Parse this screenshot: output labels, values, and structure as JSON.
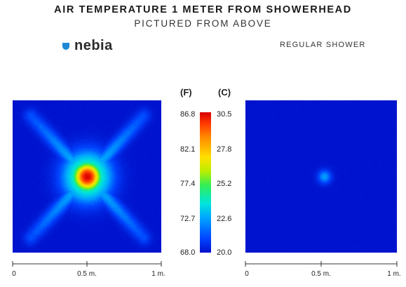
{
  "header": {
    "title": "AIR TEMPERATURE 1 METER FROM SHOWERHEAD",
    "subtitle": "PICTURED FROM ABOVE"
  },
  "brand": {
    "logo_text": "nebia",
    "logo_icon": "droplet-icon",
    "accent_color": "#1e88d6"
  },
  "panels": {
    "right_label": "REGULAR SHOWER"
  },
  "colorbar": {
    "unit_f": "(F)",
    "unit_c": "(C)",
    "f_ticks": [
      "86.8",
      "82.1",
      "77.4",
      "72.7",
      "68.0"
    ],
    "c_ticks": [
      "30.5",
      "27.8",
      "25.2",
      "22.6",
      "20.0"
    ]
  },
  "axes": {
    "left_ticks": [
      "0",
      "0.5 m.",
      "1 m."
    ],
    "right_ticks": [
      "0",
      "0.5 m.",
      "1 m."
    ]
  },
  "chart_data": [
    {
      "type": "heatmap",
      "panel": "nebia",
      "xlim": [
        0,
        1
      ],
      "ylim": [
        0,
        1
      ],
      "value_range_f": [
        68.0,
        86.8
      ],
      "value_range_c": [
        20.0,
        30.5
      ],
      "colorscale": [
        "#0011cc",
        "#0044ff",
        "#00a6ff",
        "#00e5dc",
        "#33ee55",
        "#bbee00",
        "#ffe000",
        "#ff8c00",
        "#ff3a00",
        "#d80000"
      ],
      "background_c": 20.0,
      "hotspots": [
        {
          "x": 0.5,
          "y": 0.5,
          "radius": 0.12,
          "peak_c": 30.5
        },
        {
          "x": 0.5,
          "y": 0.5,
          "radius": 0.2,
          "peak_c": 25.5
        }
      ],
      "streaks": [
        {
          "from": [
            0.12,
            0.1
          ],
          "to": [
            0.88,
            0.9
          ],
          "peak_c": 22.8
        },
        {
          "from": [
            0.12,
            0.9
          ],
          "to": [
            0.88,
            0.1
          ],
          "peak_c": 22.8
        }
      ]
    },
    {
      "type": "heatmap",
      "panel": "regular shower",
      "xlim": [
        0,
        1
      ],
      "ylim": [
        0,
        1
      ],
      "value_range_f": [
        68.0,
        86.8
      ],
      "value_range_c": [
        20.0,
        30.5
      ],
      "colorscale": [
        "#0011cc",
        "#0044ff",
        "#00a6ff",
        "#00e5dc",
        "#33ee55",
        "#bbee00",
        "#ffe000",
        "#ff8c00",
        "#ff3a00",
        "#d80000"
      ],
      "background_c": 20.0,
      "hotspots": [
        {
          "x": 0.52,
          "y": 0.5,
          "radius": 0.06,
          "peak_c": 22.3
        }
      ],
      "streaks": []
    }
  ]
}
